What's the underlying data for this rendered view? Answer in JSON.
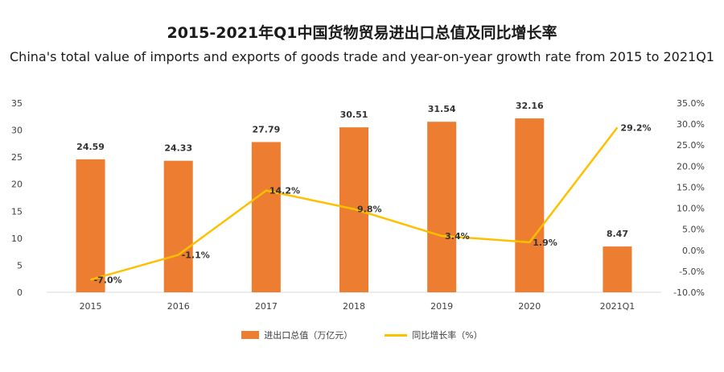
{
  "chart_data": {
    "type": "bar+line",
    "title": "2015-2021年Q1中国货物贸易进出口总值及同比增长率",
    "subtitle": "China's total value of imports and exports of goods trade and year-on-year growth rate from 2015 to 2021Q1",
    "categories": [
      "2015",
      "2016",
      "2017",
      "2018",
      "2019",
      "2020",
      "2021Q1"
    ],
    "series": [
      {
        "name": "进出口总值（万亿元）",
        "type": "bar",
        "axis": "left",
        "values": [
          24.59,
          24.33,
          27.79,
          30.51,
          31.54,
          32.16,
          8.47
        ],
        "labels": [
          "24.59",
          "24.33",
          "27.79",
          "30.51",
          "31.54",
          "32.16",
          "8.47"
        ]
      },
      {
        "name": "同比增长率（%）",
        "type": "line",
        "axis": "right",
        "values": [
          -7.0,
          -1.1,
          14.2,
          9.8,
          3.4,
          1.9,
          29.2
        ],
        "labels": [
          "-7.0%",
          "-1.1%",
          "14.2%",
          "9.8%",
          "3.4%",
          "1.9%",
          "29.2%"
        ]
      }
    ],
    "y_left": {
      "min": 0,
      "max": 35,
      "ticks": [
        "0",
        "5",
        "10",
        "15",
        "20",
        "25",
        "30",
        "35"
      ]
    },
    "y_right": {
      "min": -10,
      "max": 35,
      "ticks": [
        "-10.0%",
        "-5.0%",
        "0.0%",
        "5.0%",
        "10.0%",
        "15.0%",
        "20.0%",
        "25.0%",
        "30.0%",
        "35.0%"
      ]
    },
    "grid": false,
    "legend_position": "bottom"
  },
  "colors": {
    "bar": "#ED7D31",
    "line": "#FFC000",
    "axis": "#d9d9d9"
  }
}
